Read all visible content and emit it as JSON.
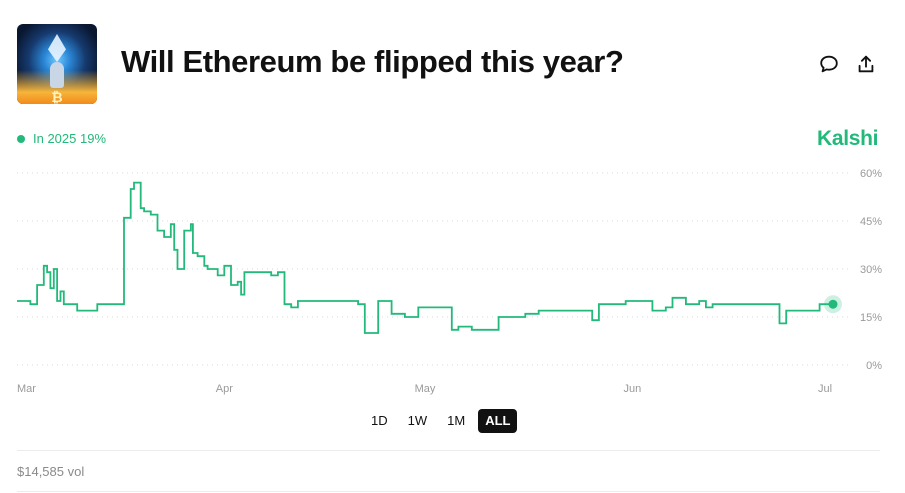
{
  "header": {
    "title": "Will Ethereum be flipped this year?",
    "image_icon": "ethereum-rocket-image"
  },
  "actions": {
    "comment_icon": "comment-icon",
    "share_icon": "share-icon"
  },
  "legend": {
    "label": "In 2025 19%",
    "color": "#22b97a"
  },
  "brand": {
    "name": "Kalshi",
    "color": "#22b97a"
  },
  "range_tabs": [
    {
      "label": "1D",
      "active": false
    },
    {
      "label": "1W",
      "active": false
    },
    {
      "label": "1M",
      "active": false
    },
    {
      "label": "ALL",
      "active": true
    }
  ],
  "footer": {
    "volume": "$14,585 vol"
  },
  "chart_data": {
    "type": "line",
    "title": "",
    "xlabel": "",
    "ylabel": "",
    "ylim": [
      0,
      60
    ],
    "yticks": [
      "0%",
      "15%",
      "30%",
      "45%",
      "60%"
    ],
    "xticks": [
      "Mar",
      "Apr",
      "May",
      "Jun",
      "Jul"
    ],
    "xtick_days": [
      0,
      31,
      61,
      92,
      122
    ],
    "grid": true,
    "legend": "top-left",
    "series": [
      {
        "name": "In 2025",
        "color": "#22b97a",
        "x": [
          0,
          2,
          3,
          4,
          4.5,
          5,
          5.5,
          6,
          6.5,
          7,
          8,
          9,
          12,
          16,
          17,
          17.5,
          18.5,
          19,
          20,
          21,
          22,
          23,
          23.5,
          24,
          25,
          26,
          26.3,
          27,
          28,
          28.5,
          30,
          31,
          32,
          33,
          33.5,
          34,
          37,
          38,
          39,
          40,
          41,
          42,
          51,
          52,
          54,
          56,
          58,
          60,
          65,
          66,
          68,
          72,
          76,
          78,
          81,
          86,
          87,
          91,
          95,
          97,
          98,
          100,
          102,
          103,
          104,
          110,
          113,
          114,
          115,
          120,
          121,
          122
        ],
        "y": [
          20,
          19,
          25,
          31,
          29,
          24,
          30,
          20,
          23,
          19,
          19,
          17,
          19,
          46,
          55,
          57,
          49,
          48,
          47,
          42,
          40,
          44,
          36,
          30,
          42,
          44,
          35,
          34,
          31,
          30,
          28,
          31,
          25,
          26,
          22,
          29,
          29,
          28,
          29,
          19,
          18,
          20,
          19,
          10,
          20,
          16,
          15,
          18,
          11,
          12,
          11,
          15,
          16,
          17,
          17,
          14,
          19,
          20,
          17,
          18,
          21,
          19,
          20,
          18,
          19,
          19,
          19,
          13,
          17,
          19,
          19,
          19
        ]
      }
    ]
  }
}
